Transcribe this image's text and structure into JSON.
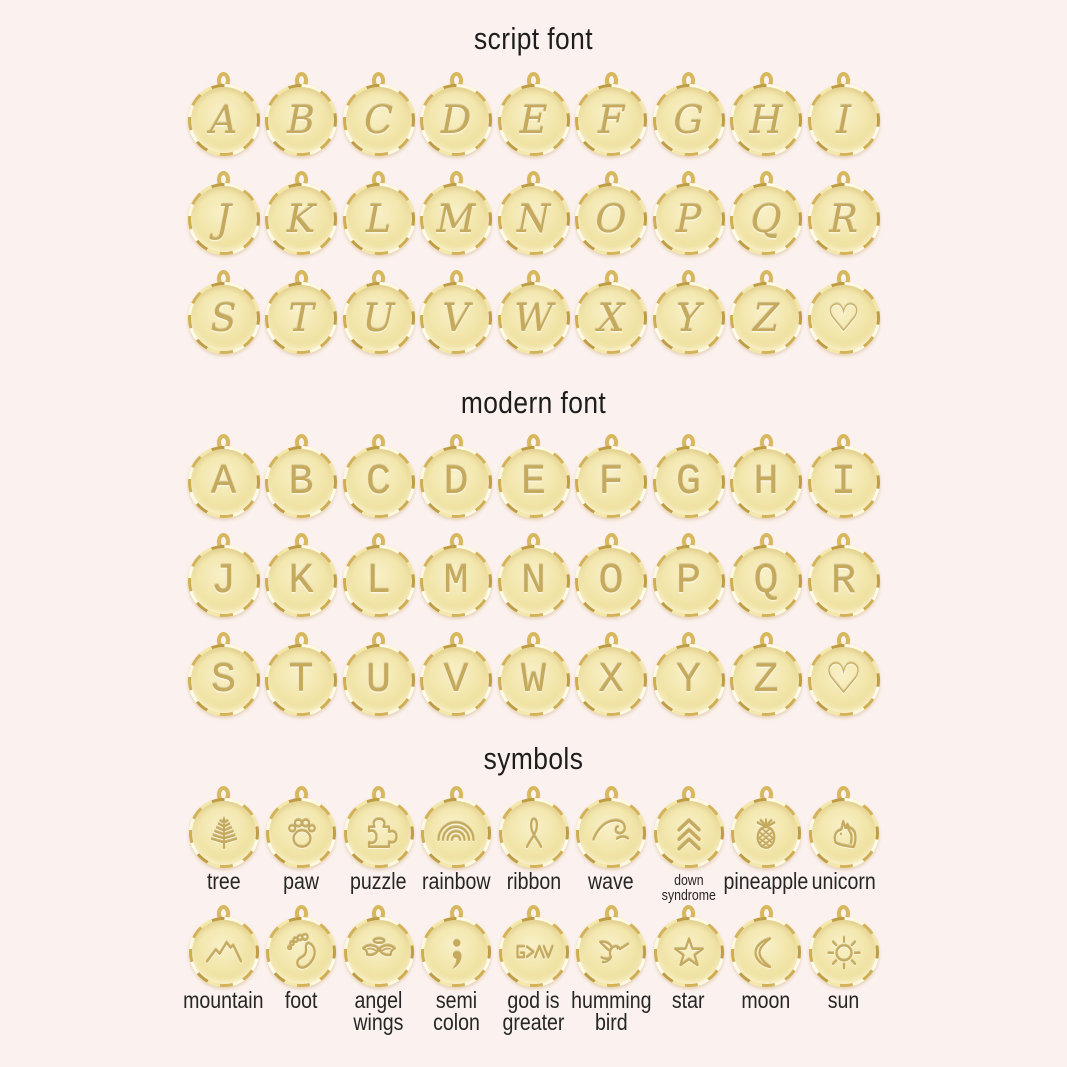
{
  "colors": {
    "background": "#fbf1ee",
    "gold_light": "#f8f0c8",
    "gold": "#f0e2a4",
    "gold_deep": "#d4b35a",
    "engraving": "#c5a95c",
    "text": "#1d1d1d"
  },
  "sections": [
    {
      "id": "script",
      "type": "letters",
      "title": "script font",
      "rows": [
        [
          "A",
          "B",
          "C",
          "D",
          "E",
          "F",
          "G",
          "H",
          "I"
        ],
        [
          "J",
          "K",
          "L",
          "M",
          "N",
          "O",
          "P",
          "Q",
          "R"
        ],
        [
          "S",
          "T",
          "U",
          "V",
          "W",
          "X",
          "Y",
          "Z",
          "♡"
        ]
      ]
    },
    {
      "id": "modern",
      "type": "letters",
      "title": "modern font",
      "rows": [
        [
          "A",
          "B",
          "C",
          "D",
          "E",
          "F",
          "G",
          "H",
          "I"
        ],
        [
          "J",
          "K",
          "L",
          "M",
          "N",
          "O",
          "P",
          "Q",
          "R"
        ],
        [
          "S",
          "T",
          "U",
          "V",
          "W",
          "X",
          "Y",
          "Z",
          "♡"
        ]
      ]
    },
    {
      "id": "symbols",
      "type": "symbols",
      "title": "symbols",
      "rows": [
        [
          {
            "icon": "tree",
            "lines": [
              "tree"
            ]
          },
          {
            "icon": "paw",
            "lines": [
              "paw"
            ]
          },
          {
            "icon": "puzzle",
            "lines": [
              "puzzle"
            ]
          },
          {
            "icon": "rainbow",
            "lines": [
              "rainbow"
            ]
          },
          {
            "icon": "ribbon",
            "lines": [
              "ribbon"
            ]
          },
          {
            "icon": "wave",
            "lines": [
              "wave"
            ]
          },
          {
            "icon": "down-syndrome",
            "lines": [
              "down",
              "syndrome"
            ],
            "small": true
          },
          {
            "icon": "pineapple",
            "lines": [
              "pineapple"
            ]
          },
          {
            "icon": "unicorn",
            "lines": [
              "unicorn"
            ]
          }
        ],
        [
          {
            "icon": "mountain",
            "lines": [
              "mountain"
            ]
          },
          {
            "icon": "foot",
            "lines": [
              "foot"
            ]
          },
          {
            "icon": "angel-wings",
            "lines": [
              "angel",
              "wings"
            ]
          },
          {
            "icon": "semi-colon",
            "lines": [
              "semi",
              "colon"
            ]
          },
          {
            "icon": "god-is-greater",
            "lines": [
              "god is",
              "greater"
            ]
          },
          {
            "icon": "humming-bird",
            "lines": [
              "humming",
              "bird"
            ]
          },
          {
            "icon": "star",
            "lines": [
              "star"
            ]
          },
          {
            "icon": "moon",
            "lines": [
              "moon"
            ]
          },
          {
            "icon": "sun",
            "lines": [
              "sun"
            ]
          }
        ]
      ]
    }
  ]
}
